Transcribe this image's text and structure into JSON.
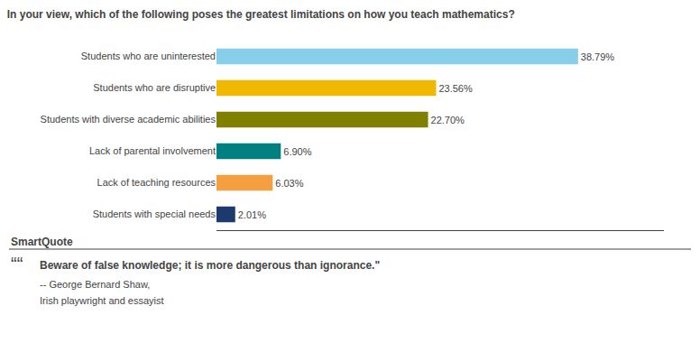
{
  "chart_data": {
    "type": "bar",
    "orientation": "horizontal",
    "title": "In your view, which of the following poses the greatest limitations on how you teach mathematics?",
    "categories": [
      "Students who are uninterested",
      "Students who are disruptive",
      "Students with diverse academic abilities",
      "Lack of parental involvement",
      "Lack of teaching resources",
      "Students with special needs"
    ],
    "values": [
      38.79,
      23.56,
      22.7,
      6.9,
      6.03,
      2.01
    ],
    "value_labels": [
      "38.79%",
      "23.56%",
      "22.70%",
      "6.90%",
      "6.03%",
      "2.01%"
    ],
    "colors": [
      "#87ceeb",
      "#f0b800",
      "#808000",
      "#008080",
      "#f4a040",
      "#1c3a6e"
    ],
    "data_labels": true,
    "xlim": [
      0,
      48
    ],
    "grid": false,
    "tick_labels": "y",
    "annotations": [
      "SmartQuote",
      "““",
      "Beware of false knowledge; it is more dangerous than ignorance.\"",
      "-- George Bernard Shaw,",
      "Irish playwright and essayist"
    ]
  }
}
